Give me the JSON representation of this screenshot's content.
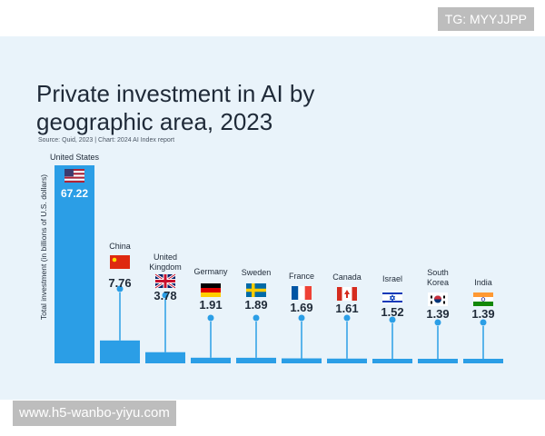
{
  "watermarks": {
    "top_right": "TG: MYYJJPP",
    "bottom_left": "www.h5-wanbo-yiyu.com"
  },
  "chart_data": {
    "type": "bar",
    "title": "Private investment in AI by\ngeographic area, 2023",
    "source": "Source: Quid, 2023 | Chart: 2024 AI Index report",
    "ylabel": "Total investment (in billions of U.S. dollars)",
    "categories": [
      "United States",
      "China",
      "United Kingdom",
      "Germany",
      "Sweden",
      "France",
      "Canada",
      "Israel",
      "South Korea",
      "India"
    ],
    "values": [
      67.22,
      7.76,
      3.78,
      1.91,
      1.89,
      1.69,
      1.61,
      1.52,
      1.39,
      1.39
    ],
    "value_labels": [
      "67.22",
      "7.76",
      "3.78",
      "1.91",
      "1.89",
      "1.69",
      "1.61",
      "1.52",
      "1.39",
      "1.39"
    ],
    "flags": [
      "us-flag-icon",
      "cn-flag-icon",
      "uk-flag-icon",
      "de-flag-icon",
      "se-flag-icon",
      "fr-flag-icon",
      "ca-flag-icon",
      "il-flag-icon",
      "kr-flag-icon",
      "in-flag-icon"
    ],
    "colors": {
      "bar": "#2b9ee6",
      "card": "#e9f3fa",
      "text": "#1f2a38"
    },
    "ylim": [
      0,
      67.22
    ]
  }
}
